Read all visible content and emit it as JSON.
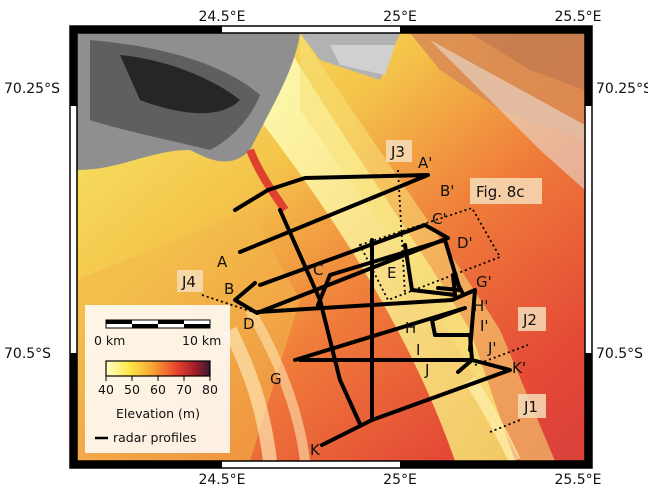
{
  "map": {
    "lat_labels": [
      "70.25°S",
      "70.5°S"
    ],
    "lon_labels": [
      "24.5°E",
      "25°E",
      "25.5°E"
    ],
    "profile_labels": [
      "A",
      "A'",
      "B",
      "B'",
      "C",
      "C'",
      "D",
      "D'",
      "E",
      "G",
      "G'",
      "H",
      "H'",
      "I",
      "I'",
      "J",
      "J'",
      "K",
      "K'"
    ],
    "transect_labels": [
      "J1",
      "J2",
      "J3",
      "J4"
    ],
    "fig_box_label": "Fig. 8c"
  },
  "legend": {
    "scale_start": "0 km",
    "scale_end": "10 km",
    "colorbar_ticks": [
      "40",
      "50",
      "60",
      "70",
      "80"
    ],
    "colorbar_title": "Elevation (m)",
    "profiles_entry": "radar profiles",
    "colors": [
      "#ffffc8",
      "#ffe84a",
      "#f7a330",
      "#e8432e",
      "#a11c2a",
      "#3a1a2e"
    ]
  }
}
